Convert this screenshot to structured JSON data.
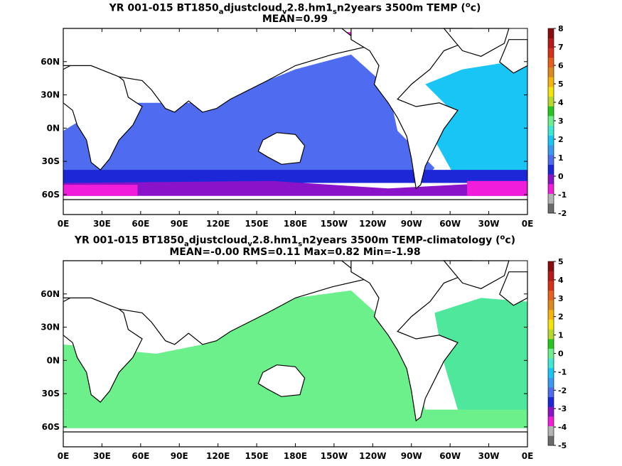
{
  "colors": {
    "ocean_warm": "#4f6bef",
    "ocean_warm_deep": "#1d27d8",
    "ocean_atlantic": "#19c5f5",
    "ocean_cold": "#f11ed9",
    "ocean_purple": "#8a12c9",
    "anomaly_fill": "#6cf08c",
    "anomaly_fill_alt": "#4fe79b",
    "land": "#ffffff",
    "coast": "#000000"
  },
  "chart_data": [
    {
      "type": "heatmap",
      "title": {
        "prefix": "YR 001-015 BT1850",
        "sub1": "a",
        "mid1": "djustcloud",
        "sub2": "v",
        "mid2": "2.8.hm1",
        "sub3": "s",
        "mid3": "n2years 3500m TEMP (",
        "sup": "o",
        "suffix": "c)"
      },
      "subtitle": "MEAN=0.99",
      "x_ticks": [
        "0E",
        "30E",
        "60E",
        "90E",
        "120E",
        "150E",
        "180E",
        "150W",
        "120W",
        "90W",
        "60W",
        "30W",
        "0E"
      ],
      "y_ticks": [
        "60N",
        "30N",
        "0N",
        "30S",
        "60S"
      ],
      "colorbar": {
        "labels": [
          "8",
          "7",
          "6",
          "5",
          "4",
          "3",
          "2",
          "1",
          "0",
          "-1",
          "-2"
        ],
        "colors": [
          "#6b6b6b",
          "#b4b4b4",
          "#f11ed9",
          "#8a12c9",
          "#1d27d8",
          "#4f6bef",
          "#3a99f2",
          "#19c5f5",
          "#3ee8d4",
          "#6cf08c",
          "#27c722",
          "#b6d92a",
          "#f5e30c",
          "#f5b30c",
          "#dc8a1c",
          "#e8601c",
          "#d4301c",
          "#b81a1a",
          "#8a0d0d"
        ]
      }
    },
    {
      "type": "heatmap",
      "title": {
        "prefix": "YR 001-015 BT1850",
        "sub1": "a",
        "mid1": "djustcloud",
        "sub2": "v",
        "mid2": "2.8.hm1",
        "sub3": "s",
        "mid3": "n2years 3500m TEMP-climatology (",
        "sup": "o",
        "suffix": "c)"
      },
      "subtitle": "MEAN=-0.00   RMS=0.11   Max=0.82   Min=-1.98",
      "x_ticks": [
        "0E",
        "30E",
        "60E",
        "90E",
        "120E",
        "150E",
        "180E",
        "150W",
        "120W",
        "90W",
        "60W",
        "30W",
        "0E"
      ],
      "y_ticks": [
        "60N",
        "30N",
        "0N",
        "30S",
        "60S"
      ],
      "colorbar": {
        "labels": [
          "5",
          "4",
          "3",
          "2",
          "1",
          "0",
          "-1",
          "-2",
          "-3",
          "-4",
          "-5"
        ],
        "colors": [
          "#6b6b6b",
          "#b4b4b4",
          "#f11ed9",
          "#8a12c9",
          "#1d27d8",
          "#4f6bef",
          "#3a99f2",
          "#19c5f5",
          "#3ee8d4",
          "#6cf08c",
          "#27c722",
          "#b6d92a",
          "#f5e30c",
          "#f5b30c",
          "#dc8a1c",
          "#e8601c",
          "#d4301c",
          "#b81a1a",
          "#8a0d0d"
        ]
      }
    }
  ]
}
